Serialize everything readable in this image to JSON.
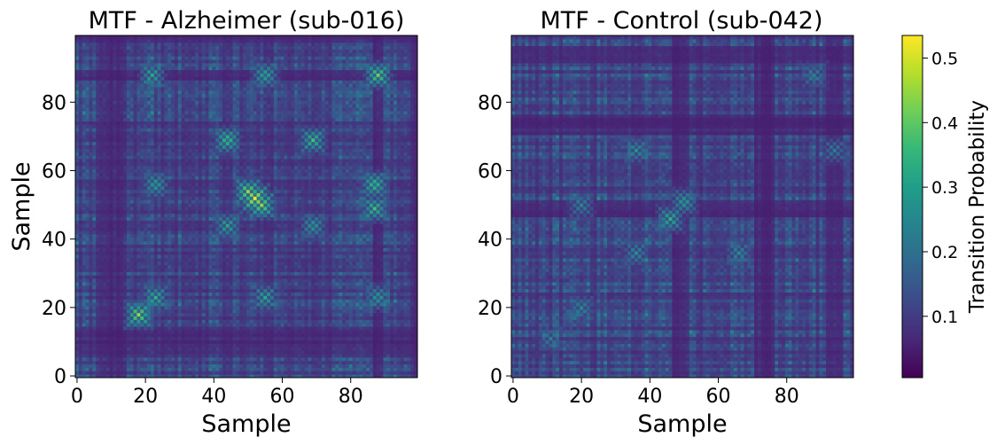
{
  "chart_data": [
    {
      "type": "heatmap",
      "title": "MTF - Alzheimer (sub-016)",
      "xlabel": "Sample",
      "ylabel": "Sample",
      "xlim": [
        0,
        99
      ],
      "ylim": [
        0,
        99
      ],
      "xticks": [
        "0",
        "20",
        "40",
        "60",
        "80"
      ],
      "yticks": [
        "0",
        "20",
        "40",
        "60",
        "80"
      ],
      "grid_size": [
        100,
        100
      ],
      "dominant_value_range": [
        0.05,
        0.2
      ],
      "hotspots": [
        {
          "x": 52,
          "y": 52,
          "value": 0.53
        },
        {
          "x": 50,
          "y": 54,
          "value": 0.45
        },
        {
          "x": 54,
          "y": 50,
          "value": 0.45
        },
        {
          "x": 88,
          "y": 88,
          "value": 0.42
        },
        {
          "x": 87,
          "y": 56,
          "value": 0.4
        },
        {
          "x": 87,
          "y": 49,
          "value": 0.38
        },
        {
          "x": 44,
          "y": 69,
          "value": 0.4
        },
        {
          "x": 69,
          "y": 69,
          "value": 0.38
        },
        {
          "x": 23,
          "y": 23,
          "value": 0.35
        },
        {
          "x": 55,
          "y": 23,
          "value": 0.33
        },
        {
          "x": 88,
          "y": 23,
          "value": 0.32
        },
        {
          "x": 18,
          "y": 18,
          "value": 0.45
        },
        {
          "x": 22,
          "y": 88,
          "value": 0.33
        },
        {
          "x": 55,
          "y": 88,
          "value": 0.35
        },
        {
          "x": 44,
          "y": 44,
          "value": 0.33
        },
        {
          "x": 69,
          "y": 44,
          "value": 0.32
        },
        {
          "x": 23,
          "y": 56,
          "value": 0.33
        }
      ]
    },
    {
      "type": "heatmap",
      "title": "MTF - Control (sub-042)",
      "xlabel": "Sample",
      "ylabel": "",
      "xlim": [
        0,
        99
      ],
      "ylim": [
        0,
        99
      ],
      "xticks": [
        "0",
        "20",
        "40",
        "60",
        "80"
      ],
      "yticks": [
        "0",
        "20",
        "40",
        "60",
        "80"
      ],
      "grid_size": [
        100,
        100
      ],
      "dominant_value_range": [
        0.05,
        0.2
      ],
      "hotspots": [
        {
          "x": 50,
          "y": 51,
          "value": 0.33
        },
        {
          "x": 36,
          "y": 36,
          "value": 0.28
        },
        {
          "x": 36,
          "y": 66,
          "value": 0.28
        },
        {
          "x": 66,
          "y": 36,
          "value": 0.27
        },
        {
          "x": 20,
          "y": 20,
          "value": 0.26
        },
        {
          "x": 20,
          "y": 50,
          "value": 0.26
        },
        {
          "x": 88,
          "y": 88,
          "value": 0.25
        },
        {
          "x": 46,
          "y": 46,
          "value": 0.35
        },
        {
          "x": 11,
          "y": 11,
          "value": 0.24
        },
        {
          "x": 94,
          "y": 66,
          "value": 0.24
        }
      ]
    }
  ],
  "colorbar": {
    "label": "Transition Probability",
    "colormap": "viridis",
    "range": [
      0.005,
      0.535
    ],
    "ticks": [
      {
        "value": 0.1,
        "label": "0.1"
      },
      {
        "value": 0.2,
        "label": "0.2"
      },
      {
        "value": 0.3,
        "label": "0.3"
      },
      {
        "value": 0.4,
        "label": "0.4"
      },
      {
        "value": 0.5,
        "label": "0.5"
      }
    ],
    "colors": [
      "#440154",
      "#482878",
      "#3e4989",
      "#31688e",
      "#26828e",
      "#1f9e89",
      "#35b779",
      "#6ece58",
      "#b5de2b",
      "#fde725"
    ]
  }
}
